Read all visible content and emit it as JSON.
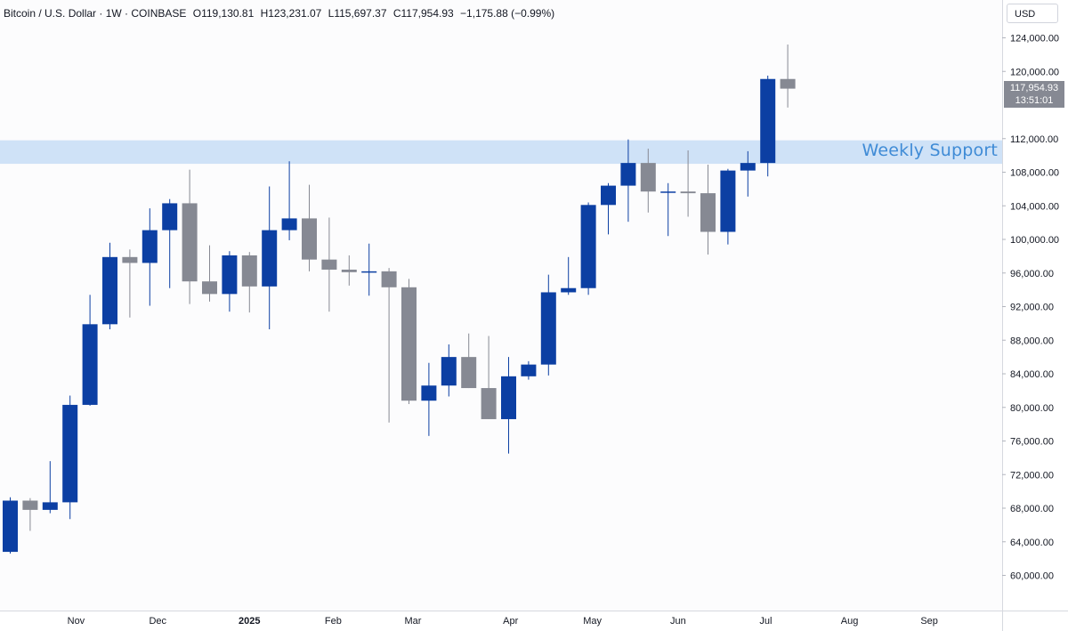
{
  "header": {
    "symbol": "Bitcoin / U.S. Dollar · 1W · COINBASE",
    "open": "O119,130.81",
    "high": "H123,231.07",
    "low": "L115,697.37",
    "close": "C117,954.93",
    "change": "−1,175.88 (−0.99%)"
  },
  "currency_button": "USD",
  "last_price": {
    "value": "117,954.93",
    "countdown": "13:51:01"
  },
  "colors": {
    "up": "#0c3fa3",
    "down": "#868993",
    "zone": "#cfe2f7",
    "zone_text": "#3f8bd6"
  },
  "chart_data": {
    "type": "candlestick",
    "title": "",
    "interval": "1W",
    "price_axis": {
      "ticks": [
        60000,
        64000,
        68000,
        72000,
        76000,
        80000,
        84000,
        88000,
        92000,
        96000,
        100000,
        104000,
        108000,
        112000,
        116000,
        120000,
        124000
      ],
      "tick_labels": [
        "60,000.00",
        "64,000.00",
        "68,000.00",
        "72,000.00",
        "76,000.00",
        "80,000.00",
        "84,000.00",
        "88,000.00",
        "92,000.00",
        "96,000.00",
        "100,000.00",
        "104,000.00",
        "108,000.00",
        "112,000.00",
        "116,000.00",
        "120,000.00",
        "124,000.00"
      ]
    },
    "time_axis": [
      {
        "label": "Nov",
        "candle_index": 3.3,
        "bold": false
      },
      {
        "label": "Dec",
        "candle_index": 7.4,
        "bold": false
      },
      {
        "label": "2025",
        "candle_index": 12.0,
        "bold": true
      },
      {
        "label": "Feb",
        "candle_index": 16.2,
        "bold": false
      },
      {
        "label": "Mar",
        "candle_index": 20.2,
        "bold": false
      },
      {
        "label": "Apr",
        "candle_index": 25.1,
        "bold": false
      },
      {
        "label": "May",
        "candle_index": 29.2,
        "bold": false
      },
      {
        "label": "Jun",
        "candle_index": 33.5,
        "bold": false
      },
      {
        "label": "Jul",
        "candle_index": 37.9,
        "bold": false
      },
      {
        "label": "Aug",
        "candle_index": 42.1,
        "bold": false
      },
      {
        "label": "Sep",
        "candle_index": 46.1,
        "bold": false
      }
    ],
    "zone": {
      "label": "Weekly Support",
      "low": 109000,
      "high": 111800
    },
    "candles": [
      {
        "o": 62800,
        "h": 69300,
        "l": 62600,
        "c": 68900
      },
      {
        "o": 68900,
        "h": 69200,
        "l": 65300,
        "c": 67800
      },
      {
        "o": 67800,
        "h": 73600,
        "l": 67400,
        "c": 68700
      },
      {
        "o": 68700,
        "h": 81400,
        "l": 66700,
        "c": 80300
      },
      {
        "o": 80300,
        "h": 93400,
        "l": 80200,
        "c": 89900
      },
      {
        "o": 89900,
        "h": 99600,
        "l": 89300,
        "c": 97900
      },
      {
        "o": 97900,
        "h": 98800,
        "l": 90700,
        "c": 97200
      },
      {
        "o": 97200,
        "h": 103700,
        "l": 92100,
        "c": 101100
      },
      {
        "o": 101100,
        "h": 104800,
        "l": 94200,
        "c": 104300
      },
      {
        "o": 104300,
        "h": 108300,
        "l": 92300,
        "c": 95000
      },
      {
        "o": 95000,
        "h": 99300,
        "l": 92600,
        "c": 93500
      },
      {
        "o": 93500,
        "h": 98600,
        "l": 91400,
        "c": 98100
      },
      {
        "o": 98100,
        "h": 98500,
        "l": 91300,
        "c": 94400
      },
      {
        "o": 94400,
        "h": 106300,
        "l": 89300,
        "c": 101100
      },
      {
        "o": 101100,
        "h": 109300,
        "l": 99900,
        "c": 102500
      },
      {
        "o": 102500,
        "h": 106500,
        "l": 96200,
        "c": 97600
      },
      {
        "o": 97600,
        "h": 102600,
        "l": 91400,
        "c": 96400
      },
      {
        "o": 96400,
        "h": 98100,
        "l": 94500,
        "c": 96100
      },
      {
        "o": 96100,
        "h": 99500,
        "l": 93300,
        "c": 96200
      },
      {
        "o": 96200,
        "h": 96600,
        "l": 78200,
        "c": 94300
      },
      {
        "o": 94300,
        "h": 95300,
        "l": 80400,
        "c": 80800
      },
      {
        "o": 80800,
        "h": 85300,
        "l": 76600,
        "c": 82600
      },
      {
        "o": 82600,
        "h": 87500,
        "l": 81300,
        "c": 86000
      },
      {
        "o": 86000,
        "h": 88800,
        "l": 82300,
        "c": 82300
      },
      {
        "o": 82300,
        "h": 88500,
        "l": 78600,
        "c": 78600
      },
      {
        "o": 78600,
        "h": 86000,
        "l": 74500,
        "c": 83700
      },
      {
        "o": 83700,
        "h": 85500,
        "l": 83300,
        "c": 85100
      },
      {
        "o": 85100,
        "h": 95800,
        "l": 83800,
        "c": 93700
      },
      {
        "o": 93700,
        "h": 97900,
        "l": 93400,
        "c": 94200
      },
      {
        "o": 94200,
        "h": 104400,
        "l": 93400,
        "c": 104100
      },
      {
        "o": 104100,
        "h": 106700,
        "l": 100600,
        "c": 106400
      },
      {
        "o": 106400,
        "h": 111900,
        "l": 102100,
        "c": 109100
      },
      {
        "o": 109100,
        "h": 110800,
        "l": 103200,
        "c": 105700
      },
      {
        "o": 105700,
        "h": 106700,
        "l": 100400,
        "c": 105700
      },
      {
        "o": 105700,
        "h": 110600,
        "l": 102700,
        "c": 105500
      },
      {
        "o": 105500,
        "h": 108900,
        "l": 98200,
        "c": 100900
      },
      {
        "o": 100900,
        "h": 108400,
        "l": 99400,
        "c": 108200
      },
      {
        "o": 108200,
        "h": 110500,
        "l": 105100,
        "c": 109100
      },
      {
        "o": 109100,
        "h": 119500,
        "l": 107500,
        "c": 119100
      },
      {
        "o": 119100,
        "h": 123200,
        "l": 115700,
        "c": 117950
      }
    ]
  }
}
